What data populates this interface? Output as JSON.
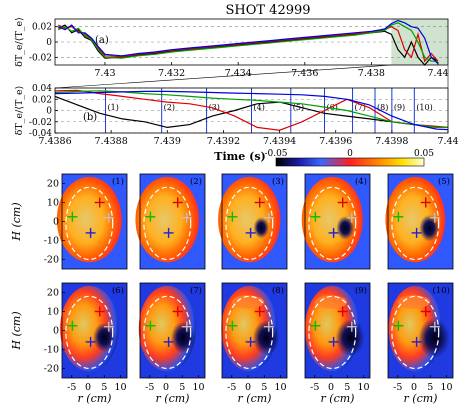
{
  "title": "SHOT  42999",
  "chart_data": [
    {
      "type": "line",
      "panel": "(a)",
      "ylabel": "δT_e/⟨T_e⟩",
      "xlim": [
        7.4285,
        7.4403
      ],
      "ylim": [
        -0.03,
        0.03
      ],
      "xticks": [
        "7.43",
        "7.432",
        "7.434",
        "7.436",
        "7.438",
        "7.44"
      ],
      "yticks": [
        "0.02",
        "0",
        "-0.02"
      ],
      "grid": "horizontal dashed at 0.02, 0, -0.02",
      "highlight_window": [
        7.4386,
        7.44
      ],
      "series": [
        {
          "color": "#000000",
          "x": [
            7.4286,
            7.4288,
            7.429,
            7.4292,
            7.4294,
            7.4296,
            7.4298,
            7.43,
            7.4305,
            7.431,
            7.4315,
            7.432,
            7.4325,
            7.433,
            7.4335,
            7.434,
            7.4345,
            7.435,
            7.4355,
            7.436,
            7.4365,
            7.437,
            7.4375,
            7.438,
            7.4384,
            7.4386,
            7.4388,
            7.439,
            7.4392,
            7.4394,
            7.4396,
            7.4398,
            7.44
          ],
          "y": [
            0.018,
            0.022,
            0.012,
            0.016,
            0.006,
            0.002,
            -0.012,
            -0.021,
            -0.02,
            -0.017,
            -0.015,
            -0.012,
            -0.01,
            -0.008,
            -0.006,
            -0.004,
            -0.002,
            0.0,
            0.002,
            0.004,
            0.006,
            0.008,
            0.01,
            0.012,
            0.014,
            0.01,
            -0.01,
            -0.02,
            0.0,
            -0.02,
            -0.03,
            -0.02,
            -0.025
          ]
        },
        {
          "color": "#e00000",
          "x": [
            7.4286,
            7.4288,
            7.429,
            7.4292,
            7.4294,
            7.4296,
            7.4298,
            7.43,
            7.4305,
            7.431,
            7.4315,
            7.432,
            7.4325,
            7.433,
            7.4335,
            7.434,
            7.4345,
            7.435,
            7.4355,
            7.436,
            7.4365,
            7.437,
            7.4375,
            7.438,
            7.4384,
            7.4386,
            7.4388,
            7.439,
            7.4392,
            7.4394,
            7.4396,
            7.4398,
            7.44
          ],
          "y": [
            0.022,
            0.018,
            0.02,
            0.014,
            0.01,
            0.004,
            -0.008,
            -0.018,
            -0.019,
            -0.016,
            -0.014,
            -0.011,
            -0.009,
            -0.007,
            -0.005,
            -0.003,
            -0.001,
            0.001,
            0.003,
            0.005,
            0.007,
            0.009,
            0.011,
            0.013,
            0.016,
            0.02,
            0.015,
            -0.01,
            -0.02,
            0.01,
            -0.025,
            -0.015,
            -0.025
          ]
        },
        {
          "color": "#00a000",
          "x": [
            7.4286,
            7.4288,
            7.429,
            7.4292,
            7.4294,
            7.4296,
            7.4298,
            7.43,
            7.4305,
            7.431,
            7.4315,
            7.432,
            7.4325,
            7.433,
            7.4335,
            7.434,
            7.4345,
            7.435,
            7.4355,
            7.436,
            7.4365,
            7.437,
            7.4375,
            7.438,
            7.4384,
            7.4386,
            7.4388,
            7.439,
            7.4392,
            7.4394,
            7.4396,
            7.4398,
            7.44
          ],
          "y": [
            0.016,
            0.02,
            0.014,
            0.018,
            0.008,
            0.003,
            -0.01,
            -0.02,
            -0.021,
            -0.018,
            -0.016,
            -0.013,
            -0.011,
            -0.009,
            -0.007,
            -0.005,
            -0.003,
            -0.001,
            0.001,
            0.003,
            0.005,
            0.007,
            0.009,
            0.012,
            0.015,
            0.022,
            0.025,
            0.02,
            0.015,
            0.0,
            -0.02,
            -0.025,
            -0.025
          ]
        },
        {
          "color": "#0000e0",
          "x": [
            7.4286,
            7.4288,
            7.429,
            7.4292,
            7.4294,
            7.4296,
            7.4298,
            7.43,
            7.4305,
            7.431,
            7.4315,
            7.432,
            7.4325,
            7.433,
            7.4335,
            7.434,
            7.4345,
            7.435,
            7.4355,
            7.436,
            7.4365,
            7.437,
            7.4375,
            7.438,
            7.4384,
            7.4386,
            7.4388,
            7.439,
            7.4392,
            7.4394,
            7.4396,
            7.4398,
            7.44
          ],
          "y": [
            0.02,
            0.016,
            0.022,
            0.012,
            0.012,
            0.005,
            -0.006,
            -0.016,
            -0.018,
            -0.015,
            -0.013,
            -0.01,
            -0.008,
            -0.006,
            -0.004,
            -0.002,
            0.0,
            0.002,
            0.004,
            0.006,
            0.008,
            0.01,
            0.012,
            0.014,
            0.017,
            0.024,
            0.028,
            0.025,
            0.02,
            0.018,
            0.005,
            -0.02,
            -0.028
          ]
        }
      ]
    },
    {
      "type": "line",
      "panel": "(b)",
      "xlabel": "Time (s)",
      "ylabel": "δT_e/⟨T_e⟩",
      "xlim": [
        7.4386,
        7.44
      ],
      "ylim": [
        -0.04,
        0.04
      ],
      "xticks": [
        "7.4386",
        "7.4388",
        "7.439",
        "7.4392",
        "7.4394",
        "7.4396",
        "7.4398",
        "7.44"
      ],
      "yticks": [
        "0.04",
        "0.02",
        "0",
        "-0.02",
        "-0.04"
      ],
      "grid": "horizontal dashed",
      "markers": [
        {
          "label": "(1)",
          "x": 7.43878
        },
        {
          "label": "(2)",
          "x": 7.43898
        },
        {
          "label": "(3)",
          "x": 7.43914
        },
        {
          "label": "(4)",
          "x": 7.4393
        },
        {
          "label": "(5)",
          "x": 7.43944
        },
        {
          "label": "(6)",
          "x": 7.43956
        },
        {
          "label": "(7)",
          "x": 7.43966
        },
        {
          "label": "(8)",
          "x": 7.43974
        },
        {
          "label": "(9)",
          "x": 7.4398
        },
        {
          "label": "(10)",
          "x": 7.43988
        }
      ],
      "series": [
        {
          "color": "#000000",
          "x": [
            7.4386,
            7.43868,
            7.43876,
            7.43884,
            7.43892,
            7.439,
            7.43908,
            7.43916,
            7.43924,
            7.43932,
            7.4394,
            7.43948,
            7.43956,
            7.43964,
            7.43972,
            7.4398,
            7.43988,
            7.43996,
            7.44
          ],
          "y": [
            0.025,
            0.01,
            -0.005,
            -0.015,
            -0.02,
            -0.03,
            -0.025,
            -0.01,
            0.0,
            0.012,
            0.015,
            0.005,
            -0.005,
            -0.01,
            -0.015,
            -0.02,
            -0.025,
            -0.03,
            -0.03
          ]
        },
        {
          "color": "#e00000",
          "x": [
            7.4386,
            7.43868,
            7.43876,
            7.43884,
            7.43892,
            7.439,
            7.43908,
            7.43916,
            7.43924,
            7.43932,
            7.4394,
            7.43948,
            7.43956,
            7.43964,
            7.43972,
            7.4398,
            7.43988,
            7.43996,
            7.44
          ],
          "y": [
            0.035,
            0.036,
            0.03,
            0.025,
            0.02,
            0.015,
            0.012,
            0.005,
            -0.01,
            -0.03,
            -0.035,
            -0.02,
            0.0,
            0.02,
            0.005,
            -0.02,
            -0.025,
            -0.028,
            -0.03
          ]
        },
        {
          "color": "#00a000",
          "x": [
            7.4386,
            7.43868,
            7.43876,
            7.43884,
            7.43892,
            7.439,
            7.43908,
            7.43916,
            7.43924,
            7.43932,
            7.4394,
            7.43948,
            7.43956,
            7.43964,
            7.43972,
            7.4398,
            7.43988,
            7.43996,
            7.44
          ],
          "y": [
            0.032,
            0.034,
            0.035,
            0.033,
            0.03,
            0.028,
            0.025,
            0.022,
            0.02,
            0.018,
            0.015,
            0.012,
            0.006,
            0.0,
            -0.01,
            -0.02,
            -0.025,
            -0.03,
            -0.03
          ]
        },
        {
          "color": "#0000e0",
          "x": [
            7.4386,
            7.43868,
            7.43876,
            7.43884,
            7.43892,
            7.439,
            7.43908,
            7.43916,
            7.43924,
            7.43932,
            7.4394,
            7.43948,
            7.43956,
            7.43964,
            7.43972,
            7.4398,
            7.43988,
            7.43996,
            7.44
          ],
          "y": [
            0.03,
            0.031,
            0.032,
            0.033,
            0.034,
            0.034,
            0.033,
            0.032,
            0.031,
            0.03,
            0.029,
            0.028,
            0.025,
            0.02,
            0.01,
            -0.01,
            -0.025,
            -0.033,
            -0.034
          ]
        }
      ]
    },
    {
      "type": "heatmap",
      "panel": "(c) image grid",
      "colorbar": {
        "ticks": [
          "-0.05",
          "0",
          "0.05"
        ],
        "range": [
          -0.05,
          0.05
        ]
      },
      "xlabel": "r (cm)",
      "ylabel": "H (cm)",
      "xticks": [
        "-5",
        "0",
        "5",
        "10"
      ],
      "yticks": [
        "20",
        "10",
        "0",
        "-10",
        "-20"
      ],
      "frames": [
        "(1)",
        "(2)",
        "(3)",
        "(4)",
        "(5)",
        "(6)",
        "(7)",
        "(8)",
        "(9)",
        "(10)"
      ]
    }
  ]
}
